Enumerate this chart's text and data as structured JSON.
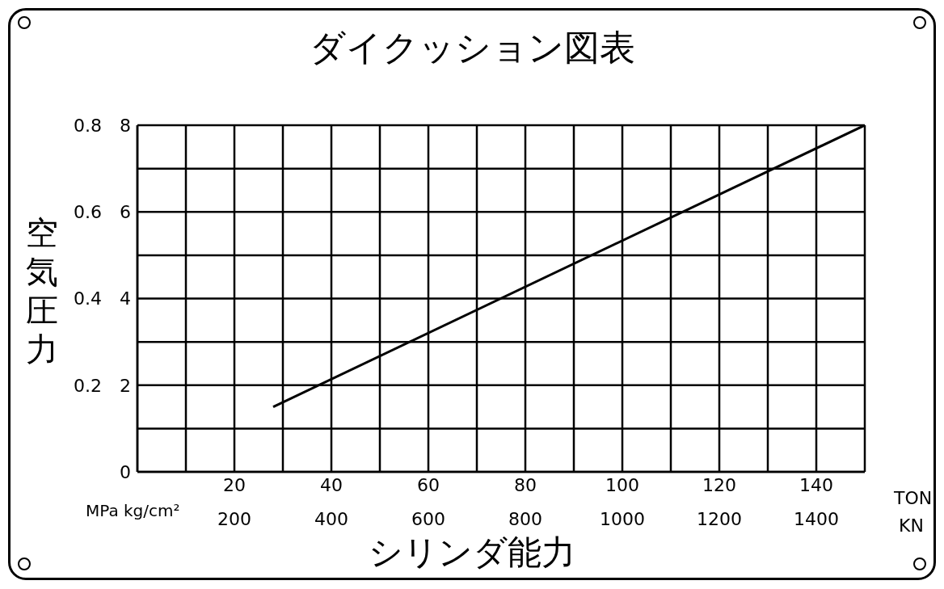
{
  "chart_data": {
    "type": "line",
    "title": "ダイクッション図表",
    "xlabel": "シリンダ能力",
    "ylabel": "空気圧力",
    "annotations": [
      "MPa kg/cm²",
      "TON",
      "KN"
    ],
    "series": [
      {
        "color": "#000000",
        "x": [
          28,
          150
        ],
        "values": [
          0.15,
          0.8
        ]
      }
    ],
    "xlim": [
      0,
      150
    ],
    "xticks": [
      {
        "value": 0,
        "label": null
      },
      {
        "value": 10,
        "label": null
      },
      20,
      {
        "value": 30,
        "label": null
      },
      40,
      {
        "value": 50,
        "label": null
      },
      60,
      {
        "value": 70,
        "label": null
      },
      80,
      {
        "value": 90,
        "label": null
      },
      100,
      {
        "value": 110,
        "label": null
      },
      120,
      {
        "value": 130,
        "label": null
      },
      140,
      {
        "value": 150,
        "label": null
      }
    ],
    "x2lim": [
      0,
      1500
    ],
    "x2ticks": [
      200,
      400,
      600,
      800,
      1000,
      1200,
      1400
    ],
    "ylim": [
      0,
      0.8
    ],
    "yticks": [
      {
        "value": 0,
        "label": null
      },
      {
        "value": 0.1,
        "label": null
      },
      0.2,
      {
        "value": 0.3,
        "label": null
      },
      0.4,
      {
        "value": 0.5,
        "label": null
      },
      0.6,
      {
        "value": 0.7,
        "label": null
      },
      0.8
    ],
    "y2lim": [
      0,
      8
    ],
    "y2ticks": [
      0,
      2,
      4,
      6,
      8
    ],
    "grid": true,
    "legend": false,
    "marker": "none",
    "line_style": "solid"
  }
}
